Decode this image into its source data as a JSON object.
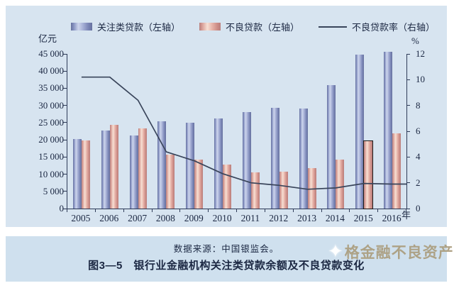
{
  "figure": {
    "source": "数据来源：中国银监会。",
    "caption": "图3—5　银行业金融机构关注类贷款余额及不良贷款变化",
    "watermark": "格金融不良资产",
    "watermark_star_icon": "sparkle-star-icon"
  },
  "legend": [
    {
      "label": "关注类贷款（左轴）",
      "swatch": "blue-bar-swatch"
    },
    {
      "label": "不良贷款（左轴）",
      "swatch": "pink-bar-swatch"
    },
    {
      "label": "不良贷款率（右轴）",
      "swatch": "line-swatch"
    }
  ],
  "colors": {
    "panel_bg": "#d7e4f0",
    "band_bg": "#cfe0ee",
    "bar_blue_mid": "#8d99c6",
    "bar_pink_mid": "#e7b3a9",
    "line": "#39445a",
    "axis": "#2e3b58",
    "text": "#1b2742",
    "watermark": "#ab9d7e"
  },
  "chart_data": {
    "type": "bar+line",
    "categories": [
      "2005",
      "2006",
      "2007",
      "2008",
      "2009",
      "2010",
      "2011",
      "2012",
      "2013",
      "2014",
      "2015",
      "2016"
    ],
    "x_unit": "年",
    "series": [
      {
        "name": "关注类贷款（左轴）",
        "type": "bar",
        "axis": "left",
        "color_key": "blue",
        "values": [
          20200,
          22800,
          21300,
          25400,
          24900,
          26300,
          28100,
          29400,
          29100,
          36000,
          44900,
          45600
        ]
      },
      {
        "name": "不良贷款（左轴）",
        "type": "bar",
        "axis": "left",
        "color_key": "pink",
        "highlight_index": 10,
        "values": [
          19900,
          24300,
          23400,
          15600,
          14300,
          12800,
          10500,
          10700,
          11700,
          14300,
          19600,
          21900
        ]
      },
      {
        "name": "不良贷款率（右轴）",
        "type": "line",
        "axis": "right",
        "values": [
          10.2,
          10.2,
          8.4,
          4.4,
          3.7,
          2.7,
          2.0,
          1.8,
          1.5,
          1.6,
          1.95,
          1.9
        ]
      }
    ],
    "left_axis": {
      "label": "亿元",
      "min": 0,
      "max": 45000,
      "step": 5000
    },
    "right_axis": {
      "label": "%",
      "min": 0,
      "max": 12,
      "step": 2
    },
    "grid": false,
    "legend_position": "top"
  }
}
